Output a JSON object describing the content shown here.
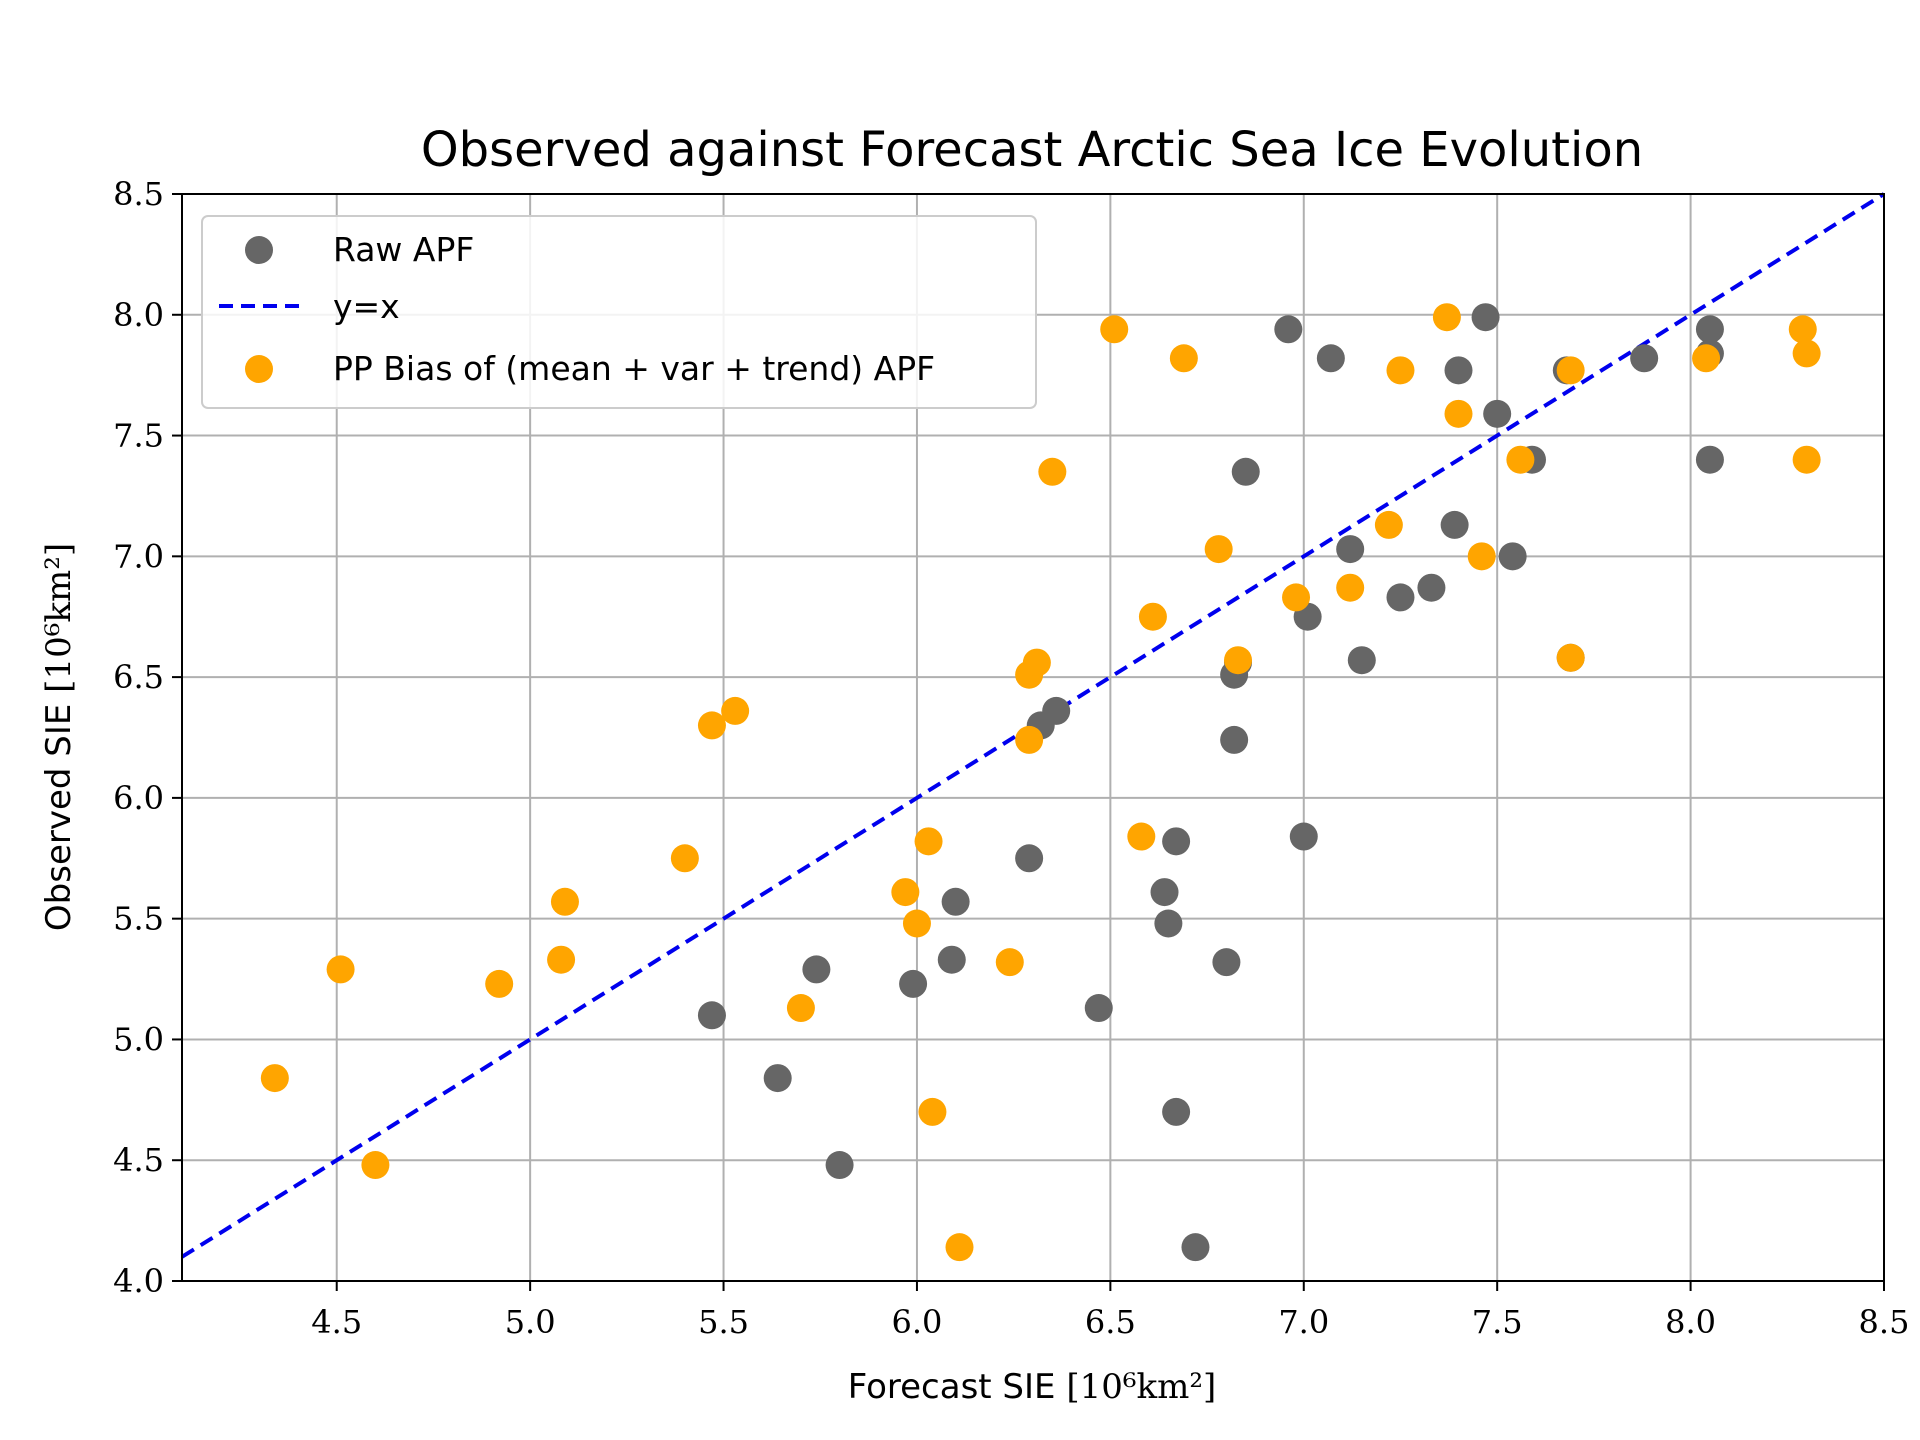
{
  "chart_data": {
    "type": "scatter",
    "title": "Observed against Forecast Arctic Sea Ice Evolution",
    "xlabel_text": "Forecast SIE ",
    "xlabel_units": "[10⁶km²]",
    "ylabel_text": "Observed SIE ",
    "ylabel_units": "[10⁶km²]",
    "xlim": [
      4.1,
      8.5
    ],
    "ylim": [
      4.0,
      8.5
    ],
    "xticks": [
      4.5,
      5.0,
      5.5,
      6.0,
      6.5,
      7.0,
      7.5,
      8.0,
      8.5
    ],
    "yticks": [
      4.0,
      4.5,
      5.0,
      5.5,
      6.0,
      6.5,
      7.0,
      7.5,
      8.0,
      8.5
    ],
    "xtick_labels": [
      "4.5",
      "5.0",
      "5.5",
      "6.0",
      "6.5",
      "7.0",
      "7.5",
      "8.0",
      "8.5"
    ],
    "ytick_labels": [
      "4.0",
      "4.5",
      "5.0",
      "5.5",
      "6.0",
      "6.5",
      "7.0",
      "7.5",
      "8.0",
      "8.5"
    ],
    "grid": true,
    "legend_position": "top-left",
    "legend": [
      {
        "label": "Raw APF",
        "kind": "marker",
        "color": "#666666"
      },
      {
        "label": "y=x",
        "kind": "dashed-line",
        "color": "#0000ee"
      },
      {
        "label": "PP Bias of (mean + var + trend) APF",
        "kind": "marker",
        "color": "#ffa500"
      }
    ],
    "reference_line": {
      "label": "y=x",
      "color": "#0000ee",
      "style": "dashed",
      "from": [
        4.1,
        4.1
      ],
      "to": [
        8.5,
        8.5
      ]
    },
    "series": [
      {
        "name": "Raw APF",
        "color": "#666666",
        "points": [
          [
            6.72,
            4.14
          ],
          [
            5.8,
            4.48
          ],
          [
            6.67,
            4.7
          ],
          [
            5.64,
            4.84
          ],
          [
            5.47,
            5.1
          ],
          [
            6.47,
            5.13
          ],
          [
            5.99,
            5.23
          ],
          [
            5.74,
            5.29
          ],
          [
            6.8,
            5.32
          ],
          [
            6.09,
            5.33
          ],
          [
            6.65,
            5.48
          ],
          [
            6.1,
            5.57
          ],
          [
            6.64,
            5.61
          ],
          [
            6.29,
            5.75
          ],
          [
            6.67,
            5.82
          ],
          [
            7.0,
            5.84
          ],
          [
            6.82,
            6.24
          ],
          [
            6.32,
            6.3
          ],
          [
            6.36,
            6.36
          ],
          [
            6.82,
            6.51
          ],
          [
            6.83,
            6.56
          ],
          [
            7.15,
            6.57
          ],
          [
            7.69,
            6.58
          ],
          [
            7.01,
            6.75
          ],
          [
            7.25,
            6.83
          ],
          [
            7.33,
            6.87
          ],
          [
            7.54,
            7.0
          ],
          [
            7.12,
            7.03
          ],
          [
            7.39,
            7.13
          ],
          [
            6.85,
            7.35
          ],
          [
            7.59,
            7.4
          ],
          [
            8.05,
            7.4
          ],
          [
            7.5,
            7.59
          ],
          [
            7.68,
            7.77
          ],
          [
            7.4,
            7.77
          ],
          [
            7.07,
            7.82
          ],
          [
            7.88,
            7.82
          ],
          [
            8.05,
            7.84
          ],
          [
            6.96,
            7.94
          ],
          [
            8.05,
            7.94
          ],
          [
            7.47,
            7.99
          ]
        ]
      },
      {
        "name": "PP Bias of (mean + var + trend) APF",
        "color": "#ffa500",
        "points": [
          [
            6.11,
            4.14
          ],
          [
            4.6,
            4.48
          ],
          [
            6.04,
            4.7
          ],
          [
            4.34,
            4.84
          ],
          [
            5.7,
            5.13
          ],
          [
            4.92,
            5.23
          ],
          [
            4.51,
            5.29
          ],
          [
            5.08,
            5.33
          ],
          [
            6.24,
            5.32
          ],
          [
            6.0,
            5.48
          ],
          [
            5.09,
            5.57
          ],
          [
            5.97,
            5.61
          ],
          [
            5.4,
            5.75
          ],
          [
            6.03,
            5.82
          ],
          [
            6.58,
            5.84
          ],
          [
            6.29,
            6.24
          ],
          [
            5.47,
            6.3
          ],
          [
            5.53,
            6.36
          ],
          [
            6.29,
            6.51
          ],
          [
            6.31,
            6.56
          ],
          [
            6.83,
            6.57
          ],
          [
            7.69,
            6.58
          ],
          [
            6.61,
            6.75
          ],
          [
            6.98,
            6.83
          ],
          [
            7.12,
            6.87
          ],
          [
            7.46,
            7.0
          ],
          [
            6.78,
            7.03
          ],
          [
            7.22,
            7.13
          ],
          [
            6.35,
            7.35
          ],
          [
            7.56,
            7.4
          ],
          [
            8.3,
            7.4
          ],
          [
            7.4,
            7.59
          ],
          [
            7.69,
            7.77
          ],
          [
            7.25,
            7.77
          ],
          [
            6.69,
            7.82
          ],
          [
            8.04,
            7.82
          ],
          [
            8.3,
            7.84
          ],
          [
            6.51,
            7.94
          ],
          [
            8.29,
            7.94
          ],
          [
            7.37,
            7.99
          ]
        ]
      }
    ]
  }
}
